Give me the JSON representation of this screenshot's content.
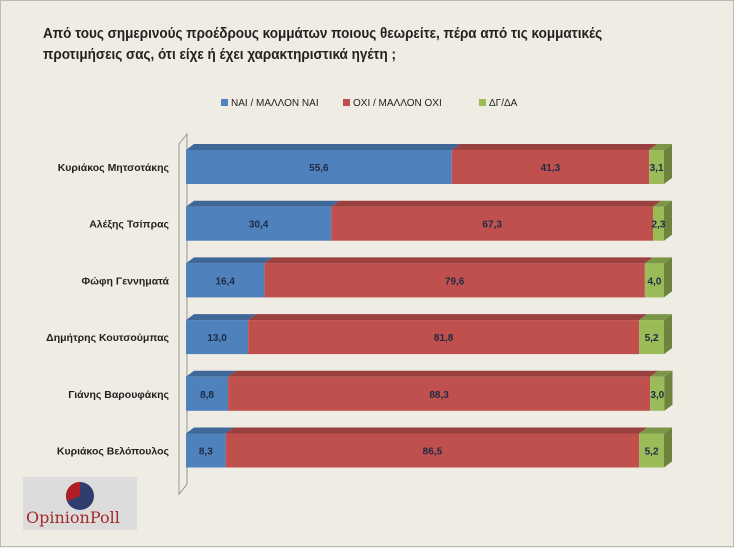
{
  "title": "Από τους σημερινούς προέδρους κομμάτων ποιους θεωρείτε, πέρα από τις κομματικές προτιμήσεις σας, ότι είχε ή έχει χαρακτηριστικά ηγέτη ;",
  "logo_text": "OpinionPoll",
  "chart_data": {
    "type": "bar",
    "orientation": "horizontal",
    "stacked": true,
    "three_d": true,
    "legend_position": "top",
    "xlim": [
      0,
      100
    ],
    "grid": false,
    "categories": [
      "Κυριάκος Μητσοτάκης",
      "Αλέξης Τσίπρας",
      "Φώφη Γεννηματά",
      "Δημήτρης Κουτσούμπας",
      "Γιάνης Βαρουφάκης",
      "Κυριάκος Βελόπουλος"
    ],
    "series": [
      {
        "name": "ΝΑΙ / ΜΑΛΛΟΝ ΝΑΙ",
        "color": "#4f81bd",
        "values": [
          55.6,
          30.4,
          16.4,
          13.0,
          8.8,
          8.3
        ],
        "labels": [
          "55,6",
          "30,4",
          "16,4",
          "13,0",
          "8,8",
          "8,3"
        ]
      },
      {
        "name": "ΟΧΙ / ΜΑΛΛΟΝ ΟΧΙ",
        "color": "#c0504d",
        "values": [
          41.3,
          67.3,
          79.6,
          81.8,
          88.3,
          86.5
        ],
        "labels": [
          "41,3",
          "67,3",
          "79,6",
          "81,8",
          "88,3",
          "86,5"
        ]
      },
      {
        "name": "ΔΓ/ΔΑ",
        "color": "#9bbb59",
        "values": [
          3.1,
          2.3,
          4.0,
          5.2,
          3.0,
          5.2
        ],
        "labels": [
          "3,1",
          "2,3",
          "4,0",
          "5,2",
          "3,0",
          "5,2"
        ]
      }
    ]
  }
}
